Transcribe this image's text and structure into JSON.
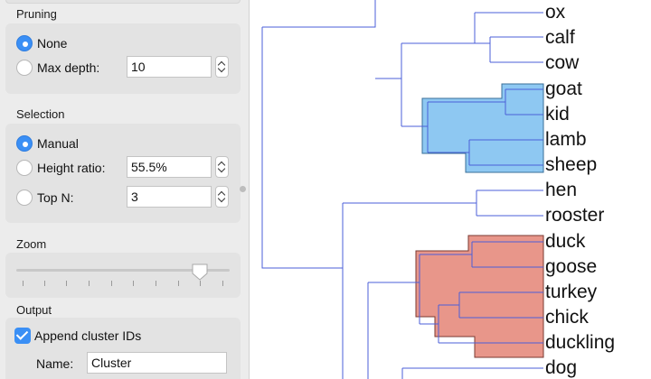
{
  "pruning": {
    "title": "Pruning",
    "options": [
      {
        "label": "None",
        "selected": true
      },
      {
        "label": "Max depth:",
        "selected": false
      }
    ],
    "max_depth_value": "10"
  },
  "selection": {
    "title": "Selection",
    "options": [
      {
        "label": "Manual",
        "selected": true
      },
      {
        "label": "Height ratio:",
        "selected": false
      },
      {
        "label": "Top N:",
        "selected": false
      }
    ],
    "height_ratio_value": "55.5%",
    "top_n_value": "3"
  },
  "zoom": {
    "title": "Zoom",
    "level": 0.86
  },
  "output": {
    "title": "Output",
    "append_label": "Append cluster IDs",
    "append_checked": true,
    "name_label": "Name:",
    "name_value": "Cluster"
  },
  "dendrogram": {
    "leaves": [
      "ox",
      "calf",
      "cow",
      "goat",
      "kid",
      "lamb",
      "sheep",
      "hen",
      "rooster",
      "duck",
      "goose",
      "turkey",
      "chick",
      "duckling",
      "dog"
    ],
    "clusters": [
      {
        "leaves": [
          "goat",
          "kid",
          "lamb",
          "sheep"
        ],
        "color": "#8ec8f2"
      },
      {
        "leaves": [
          "duck",
          "goose",
          "turkey",
          "chick",
          "duckling"
        ],
        "color": "#e8968a"
      }
    ],
    "link_color": "#4b5fd8"
  }
}
